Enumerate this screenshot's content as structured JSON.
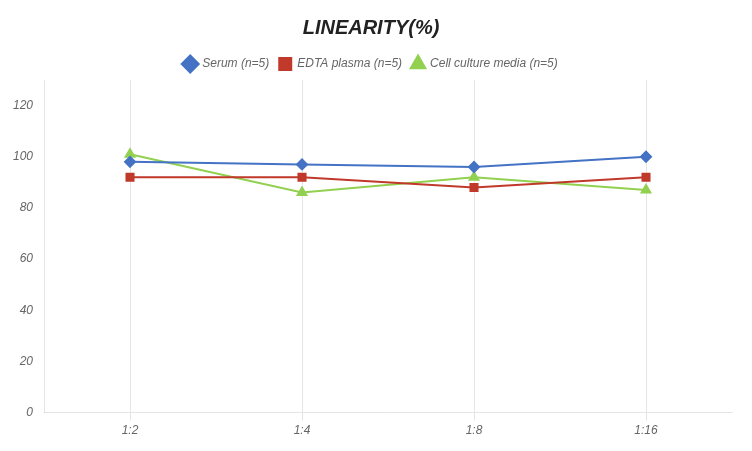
{
  "chart_data": {
    "type": "line",
    "title": "LINEARITY(%)",
    "categories": [
      "1:2",
      "1:4",
      "1:8",
      "1:16"
    ],
    "series": [
      {
        "name": "Serum (n=5)",
        "color": "#4472C4",
        "marker": "diamond",
        "values": [
          98,
          97,
          96,
          100
        ]
      },
      {
        "name": "EDTA plasma (n=5)",
        "color": "#C0392B",
        "marker": "square",
        "values": [
          92,
          92,
          88,
          92
        ]
      },
      {
        "name": "Cell culture media (n=5)",
        "color": "#92D050",
        "marker": "triangle",
        "values": [
          101,
          86,
          92,
          87
        ]
      }
    ],
    "ylim": [
      0,
      130
    ],
    "yticks": [
      0,
      20,
      40,
      60,
      80,
      100,
      120
    ],
    "grid": "x",
    "legend": "top"
  }
}
